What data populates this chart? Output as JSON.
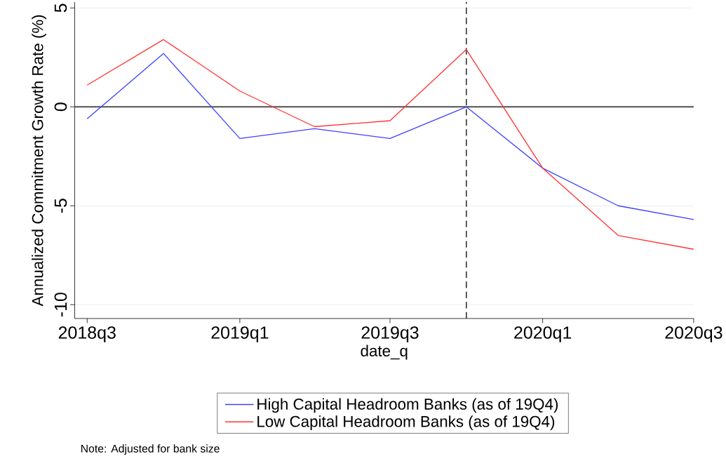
{
  "chart_data": {
    "type": "line",
    "xlabel": "date_q",
    "ylabel": "Annualized Commitment Growth Rate (%)",
    "x": [
      "2018-07-01",
      "2018-10-01",
      "2019-01-01",
      "2019-04-01",
      "2019-07-01",
      "2019-10-01",
      "2020-01-01",
      "2020-04-01",
      "2020-07-01"
    ],
    "xlim": [
      "2018-06-16",
      "2020-07-01"
    ],
    "ylim": [
      -10.7,
      5.3
    ],
    "xticks": [
      {
        "value": "2018-07-01",
        "label": "2018q3"
      },
      {
        "value": "2019-01-01",
        "label": "2019q1"
      },
      {
        "value": "2019-07-01",
        "label": "2019q3"
      },
      {
        "value": "2020-01-01",
        "label": "2020q1"
      },
      {
        "value": "2020-07-01",
        "label": "2020q3"
      }
    ],
    "yticks": [
      -10,
      -5,
      0,
      5
    ],
    "series": [
      {
        "name": "High Capital Headroom Banks (as of 19Q4)",
        "color": "#4040ff",
        "values": [
          -0.6,
          2.7,
          -1.6,
          -1.1,
          -1.6,
          0,
          -3.1,
          -5.0,
          -5.7
        ]
      },
      {
        "name": "Low Capital Headroom Banks (as of 19Q4)",
        "color": "#ff3333",
        "values": [
          1.1,
          3.4,
          0.8,
          -1.0,
          -0.7,
          2.9,
          -3.1,
          -6.5,
          -7.2
        ]
      }
    ],
    "ref_lines": [
      {
        "axis": "y",
        "value": 0,
        "color": "#505050",
        "line_style": "solid"
      },
      {
        "axis": "x",
        "value": "2019-10-01",
        "color": "#303030",
        "line_style": "dashed"
      }
    ],
    "grid": "y",
    "legend": "bottom",
    "marker": "none",
    "line_style": "solid",
    "annotations": [
      "Note: Adjusted for bank size"
    ]
  }
}
